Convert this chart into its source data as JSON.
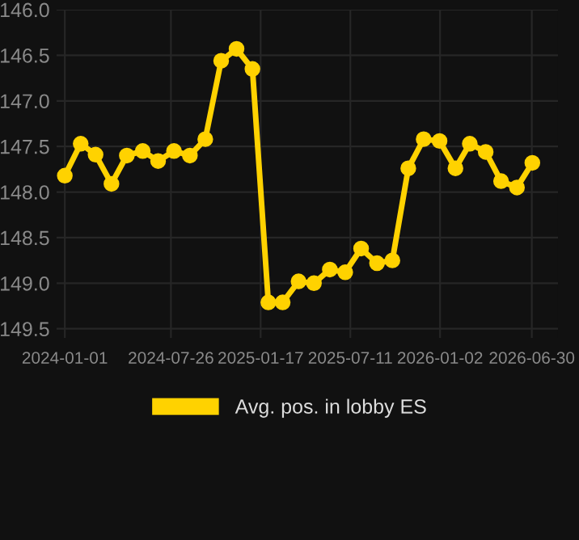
{
  "chart_data": {
    "type": "line",
    "x": [
      "2024-01-01",
      "2024-02-01",
      "2024-03-01",
      "2024-04-01",
      "2024-05-01",
      "2024-06-01",
      "2024-07-01",
      "2024-08-01",
      "2024-09-01",
      "2024-10-01",
      "2024-11-01",
      "2024-12-01",
      "2025-01-01",
      "2025-02-01",
      "2025-03-01",
      "2025-04-01",
      "2025-05-01",
      "2025-06-01",
      "2025-07-01",
      "2025-08-01",
      "2025-09-01",
      "2025-10-01",
      "2025-11-01",
      "2025-12-01",
      "2026-01-01",
      "2026-02-01",
      "2026-03-01",
      "2026-04-01",
      "2026-05-01",
      "2026-06-01",
      "2026-07-01"
    ],
    "series": [
      {
        "name": "Avg. pos. in lobby ES",
        "color": "#ffd200",
        "values": [
          147.82,
          147.47,
          147.59,
          147.91,
          147.6,
          147.55,
          147.66,
          147.55,
          147.6,
          147.42,
          146.56,
          146.43,
          146.65,
          149.21,
          149.21,
          148.98,
          149.0,
          148.85,
          148.88,
          148.62,
          148.78,
          148.75,
          147.74,
          147.42,
          147.44,
          147.74,
          147.47,
          147.56,
          147.88,
          147.95,
          147.68
        ]
      }
    ],
    "xlim": [
      "2023-12-16",
      "2026-08-20"
    ],
    "xticks": [
      "2024-01-01",
      "2024-07-26",
      "2025-01-17",
      "2025-07-11",
      "2026-01-02",
      "2026-06-30"
    ],
    "ylim": [
      149.6,
      146.0
    ],
    "yticks": [
      {
        "value": 146,
        "label": "146.0"
      },
      146.5,
      {
        "value": 147,
        "label": "147.0"
      },
      147.5,
      {
        "value": 148,
        "label": "148.0"
      },
      148.5,
      {
        "value": 149,
        "label": "149.0"
      },
      149.5
    ],
    "grid": true,
    "legend": "bottom",
    "marker": "circle",
    "line_style": "solid"
  }
}
